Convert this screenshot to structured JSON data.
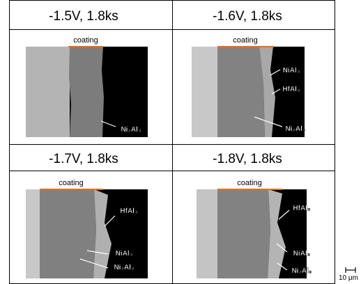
{
  "panels": [
    {
      "title": "-1.5V, 1.8ks",
      "coating": "coating",
      "labels": [
        "Ni₂Al₃"
      ]
    },
    {
      "title": "-1.6V, 1.8ks",
      "coating": "coating",
      "labels": [
        "NiAl₃",
        "HfAl₃",
        "Ni₂Al₃"
      ]
    },
    {
      "title": "-1.7V, 1.8ks",
      "coating": "coating",
      "labels": [
        "HfAl₃",
        "NiAl₃",
        "Ni₂Al₃"
      ]
    },
    {
      "title": "-1.8V, 1.8ks",
      "coating": "coating",
      "labels": [
        "HfAl₃",
        "NiAl₃",
        "Ni₂Al₃"
      ]
    }
  ],
  "scale_bar": "10 μm"
}
